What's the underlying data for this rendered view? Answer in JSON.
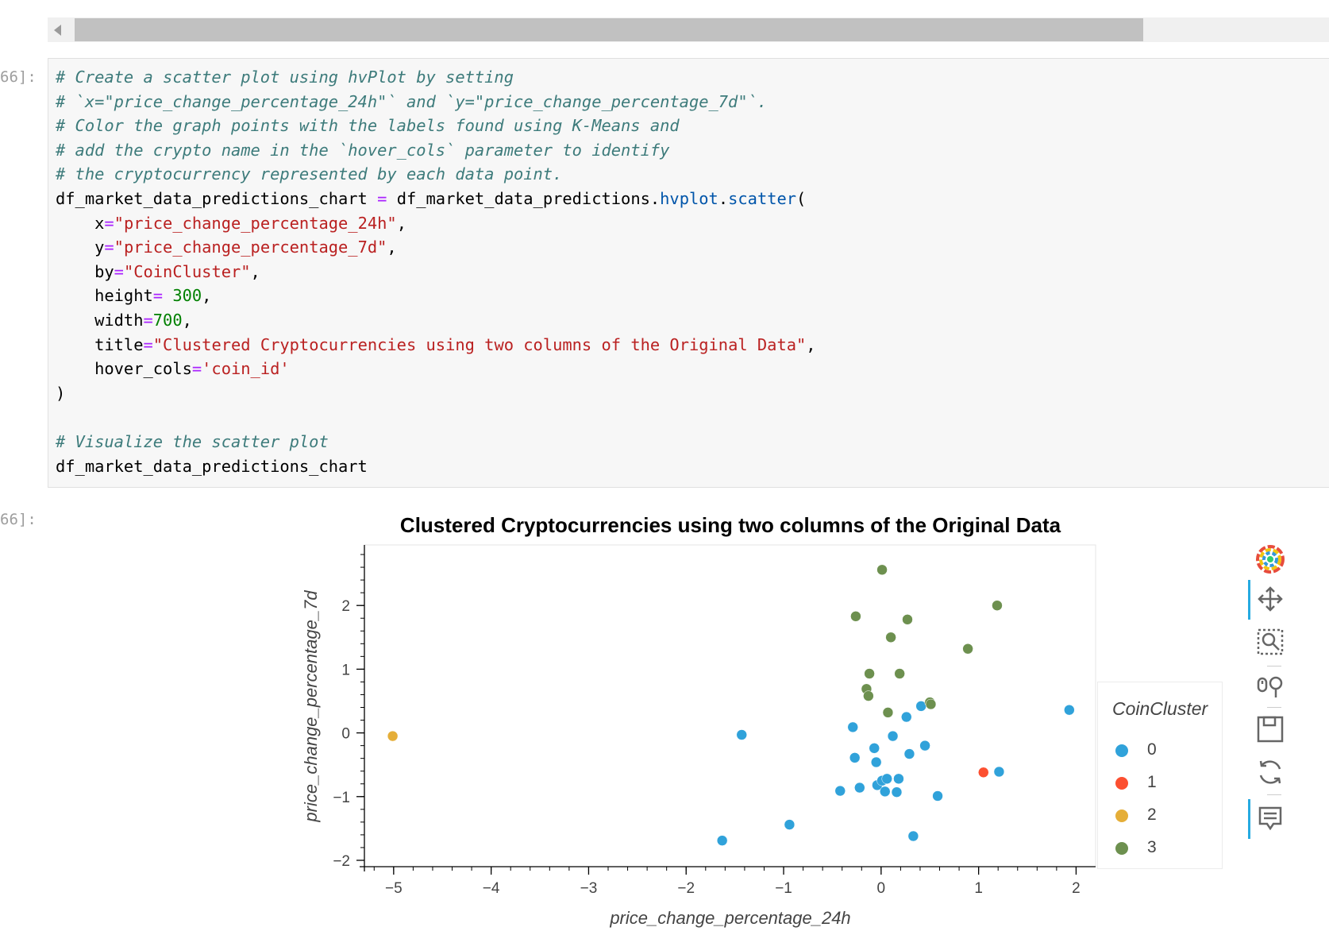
{
  "cell": {
    "prompt_in": "66]:",
    "prompt_out": "66]:",
    "code": {
      "line1": "# Create a scatter plot using hvPlot by setting",
      "line2": "# `x=\"price_change_percentage_24h\"` and `y=\"price_change_percentage_7d\"`.",
      "line3": "# Color the graph points with the labels found using K-Means and",
      "line4": "# add the crypto name in the `hover_cols` parameter to identify",
      "line5": "# the cryptocurrency represented by each data point.",
      "line6_var": "df_market_data_predictions_chart",
      "line6_eq": " = ",
      "line6_obj": "df_market_data_predictions.",
      "line6_m1": "hvplot",
      "line6_dot": ".",
      "line6_m2": "scatter",
      "line6_paren": "(",
      "l7_key": "    x",
      "l7_val": "\"price_change_percentage_24h\"",
      "l8_key": "    y",
      "l8_val": "\"price_change_percentage_7d\"",
      "l9_key": "    by",
      "l9_val": "\"CoinCluster\"",
      "l10_key": "    height",
      "l10_eq": "= ",
      "l10_val": "300",
      "l11_key": "    width",
      "l11_val": "700",
      "l12_key": "    title",
      "l12_val": "\"Clustered Cryptocurrencies using two columns of the Original Data\"",
      "l13_key": "    hover_cols",
      "l13_val": "'coin_id'",
      "close": ")",
      "comment2": "# Visualize the scatter plot",
      "last": "df_market_data_predictions_chart",
      "eq": "=",
      "comma": ","
    }
  },
  "chart_data": {
    "type": "scatter",
    "title": "Clustered Cryptocurrencies using two columns of the Original Data",
    "xlabel": "price_change_percentage_24h",
    "ylabel": "price_change_percentage_7d",
    "xlim": [
      -5.3,
      2.2
    ],
    "ylim": [
      -2.1,
      2.95
    ],
    "x_ticks": [
      -5,
      -4,
      -3,
      -2,
      -1,
      0,
      1,
      2
    ],
    "y_ticks": [
      -2,
      -1,
      0,
      1,
      2
    ],
    "x_tick_labels": [
      "−5",
      "−4",
      "−3",
      "−2",
      "−1",
      "0",
      "1",
      "2"
    ],
    "y_tick_labels": [
      "−2",
      "−1",
      "0",
      "1",
      "2"
    ],
    "legend_title": "CoinCluster",
    "legend_position": "right",
    "series": [
      {
        "name": "0",
        "color": "#30a2da",
        "points": [
          [
            -1.63,
            -1.69
          ],
          [
            -1.43,
            -0.03
          ],
          [
            -0.94,
            -1.44
          ],
          [
            -0.42,
            -0.91
          ],
          [
            -0.29,
            0.09
          ],
          [
            -0.27,
            -0.39
          ],
          [
            -0.22,
            -0.86
          ],
          [
            -0.07,
            -0.24
          ],
          [
            -0.05,
            -0.46
          ],
          [
            -0.04,
            -0.82
          ],
          [
            0.01,
            -0.75
          ],
          [
            0.04,
            -0.92
          ],
          [
            0.06,
            -0.72
          ],
          [
            0.12,
            -0.05
          ],
          [
            0.16,
            -0.93
          ],
          [
            0.18,
            -0.72
          ],
          [
            0.26,
            0.25
          ],
          [
            0.29,
            -0.33
          ],
          [
            0.33,
            -1.62
          ],
          [
            0.41,
            0.42
          ],
          [
            0.45,
            -0.2
          ],
          [
            0.58,
            -0.99
          ],
          [
            1.21,
            -0.61
          ],
          [
            1.93,
            0.36
          ]
        ]
      },
      {
        "name": "1",
        "color": "#fc4f30",
        "points": [
          [
            1.05,
            -0.62
          ]
        ]
      },
      {
        "name": "2",
        "color": "#e5ae38",
        "points": [
          [
            -5.01,
            -0.05
          ]
        ]
      },
      {
        "name": "3",
        "color": "#6d904f",
        "points": [
          [
            -0.26,
            1.83
          ],
          [
            -0.15,
            0.69
          ],
          [
            -0.13,
            0.58
          ],
          [
            -0.12,
            0.93
          ],
          [
            0.01,
            2.56
          ],
          [
            0.07,
            0.32
          ],
          [
            0.1,
            1.5
          ],
          [
            0.19,
            0.93
          ],
          [
            0.27,
            1.78
          ],
          [
            0.5,
            0.48
          ],
          [
            0.51,
            0.45
          ],
          [
            0.89,
            1.32
          ],
          [
            1.19,
            2.0
          ]
        ]
      }
    ]
  },
  "legend": {
    "title": "CoinCluster",
    "items": [
      {
        "label": "0",
        "color": "#30a2da"
      },
      {
        "label": "1",
        "color": "#fc4f30"
      },
      {
        "label": "2",
        "color": "#e5ae38"
      },
      {
        "label": "3",
        "color": "#6d904f"
      }
    ]
  },
  "toolbar": {
    "icons": [
      "bokeh-logo-icon",
      "pan-icon",
      "box-zoom-icon",
      "wheel-zoom-icon",
      "save-icon",
      "reset-icon",
      "hover-icon"
    ]
  }
}
